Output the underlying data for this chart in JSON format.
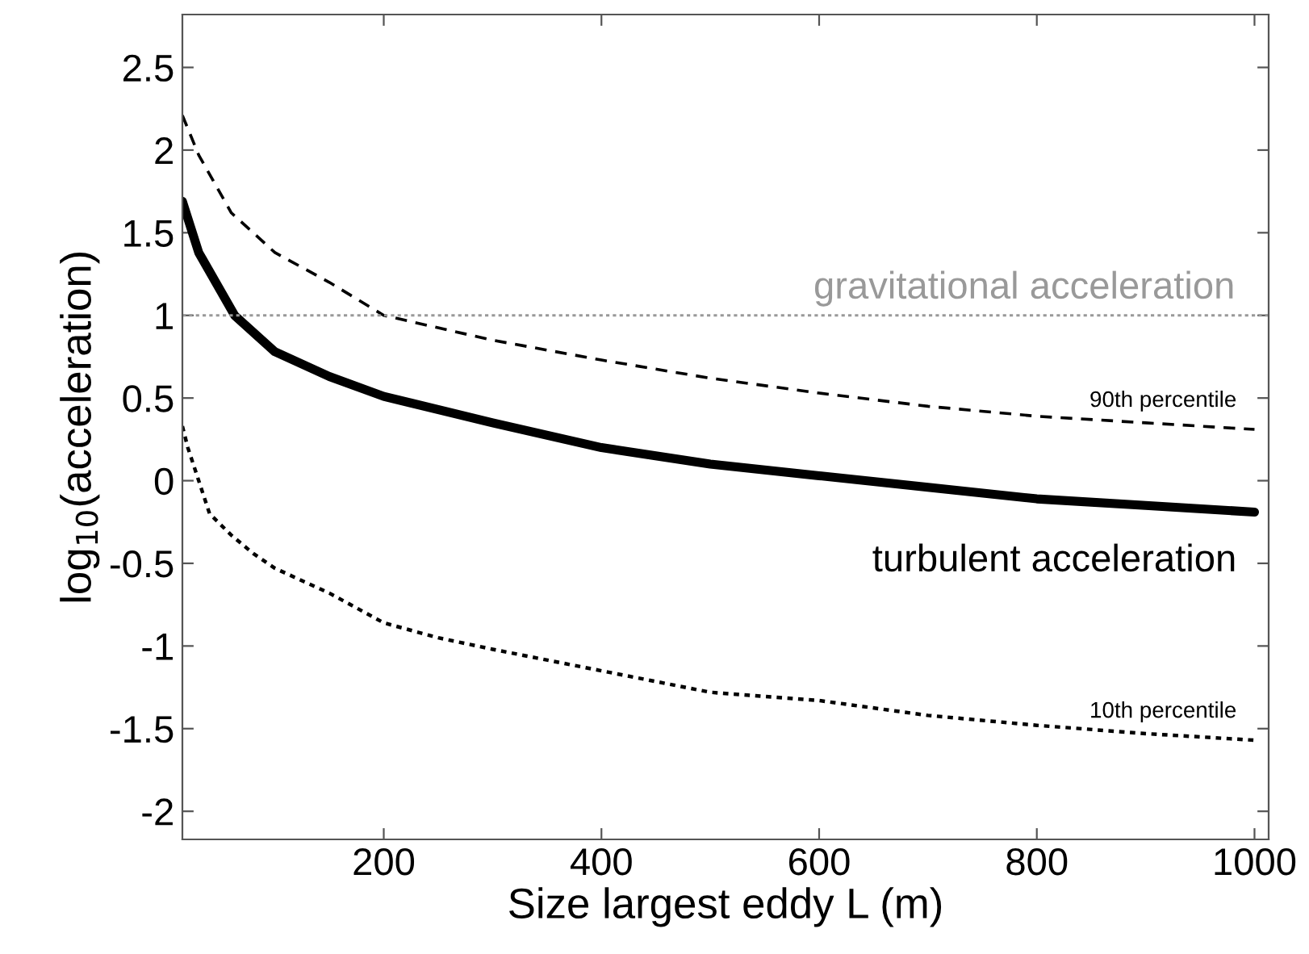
{
  "chart_data": {
    "type": "line",
    "xlabel": "Size largest eddy L (m)",
    "ylabel": "log$_{10}$(acceleration)",
    "xlim": [
      15,
      1013
    ],
    "ylim": [
      -2.17,
      2.82
    ],
    "xticks": [
      200,
      400,
      600,
      800,
      1000
    ],
    "yticks": [
      -2,
      -1.5,
      -1,
      -0.5,
      0,
      0.5,
      1,
      1.5,
      2,
      2.5
    ],
    "grid": false,
    "legend": false,
    "ref_lines": [
      {
        "axis": "y",
        "value": 1,
        "label": "gravitational acceleration",
        "color": "#999999",
        "line_style": "dotted"
      }
    ],
    "series": [
      {
        "name": "90th percentile",
        "color": "#000000",
        "line_style": "dashed",
        "x": [
          15,
          30,
          60,
          100,
          150,
          200,
          300,
          400,
          500,
          600,
          700,
          800,
          900,
          1000
        ],
        "values": [
          2.21,
          1.97,
          1.62,
          1.38,
          1.2,
          1.0,
          0.85,
          0.73,
          0.62,
          0.53,
          0.45,
          0.39,
          0.35,
          0.31
        ]
      },
      {
        "name": "turbulent acceleration",
        "color": "#000000",
        "line_style": "solid",
        "x": [
          15,
          30,
          63,
          100,
          150,
          200,
          300,
          400,
          500,
          600,
          700,
          800,
          900,
          1000
        ],
        "values": [
          1.69,
          1.38,
          1.0,
          0.78,
          0.63,
          0.51,
          0.35,
          0.2,
          0.1,
          0.03,
          -0.04,
          -0.11,
          -0.15,
          -0.19
        ]
      },
      {
        "name": "10th percentile",
        "color": "#000000",
        "line_style": "dotted",
        "x": [
          15,
          20,
          40,
          60,
          80,
          100,
          150,
          200,
          250,
          300,
          400,
          500,
          600,
          700,
          800,
          900,
          1000
        ],
        "values": [
          0.33,
          0.2,
          -0.2,
          -0.33,
          -0.44,
          -0.53,
          -0.68,
          -0.86,
          -0.95,
          -1.02,
          -1.15,
          -1.28,
          -1.33,
          -1.42,
          -1.48,
          -1.53,
          -1.57
        ]
      }
    ]
  }
}
